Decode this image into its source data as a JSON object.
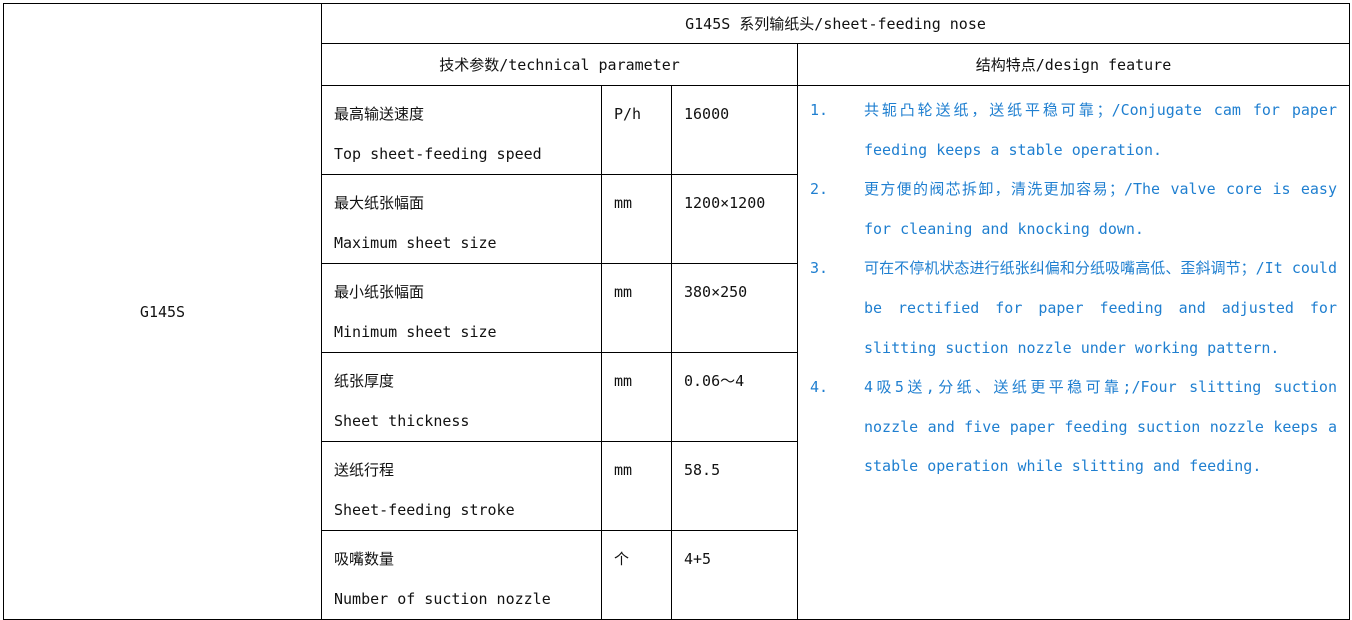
{
  "model": "G145S",
  "title": "G145S 系列输纸头/sheet-feeding nose",
  "headers": {
    "params": "技术参数/technical parameter",
    "features": "结构特点/design feature"
  },
  "rows": [
    {
      "zh": "最高输送速度",
      "en": "Top sheet-feeding speed",
      "unit": "P/h",
      "value": "16000"
    },
    {
      "zh": "最大纸张幅面",
      "en": "Maximum sheet size",
      "unit": "mm",
      "value": "1200×1200"
    },
    {
      "zh": "最小纸张幅面",
      "en": "Minimum sheet size",
      "unit": "mm",
      "value": "380×250"
    },
    {
      "zh": "纸张厚度",
      "en": "Sheet thickness",
      "unit": "mm",
      "value": "0.06～4"
    },
    {
      "zh": "送纸行程",
      "en": "Sheet-feeding stroke",
      "unit": "mm",
      "value": "58.5"
    },
    {
      "zh": "吸嘴数量",
      "en": "Number of suction nozzle",
      "unit": "个",
      "value": "4+5"
    }
  ],
  "features": [
    {
      "num": "1.",
      "text": "共轭凸轮送纸，送纸平稳可靠；/Conjugate cam for paper feeding keeps a stable operation."
    },
    {
      "num": "2.",
      "text": "更方便的阀芯拆卸，清洗更加容易；/The valve core is easy for cleaning and knocking down."
    },
    {
      "num": "3.",
      "text": "可在不停机状态进行纸张纠偏和分纸吸嘴高低、歪斜调节；/It could be rectified for paper feeding and adjusted for slitting suction nozzle under working pattern."
    },
    {
      "num": "4.",
      "text": "4吸5送,分纸、送纸更平稳可靠;/Four slitting suction nozzle and five paper feeding suction nozzle keeps a stable operation while slitting and feeding."
    }
  ],
  "colors": {
    "feature_text": "#1f7fd0",
    "border": "#000000"
  }
}
